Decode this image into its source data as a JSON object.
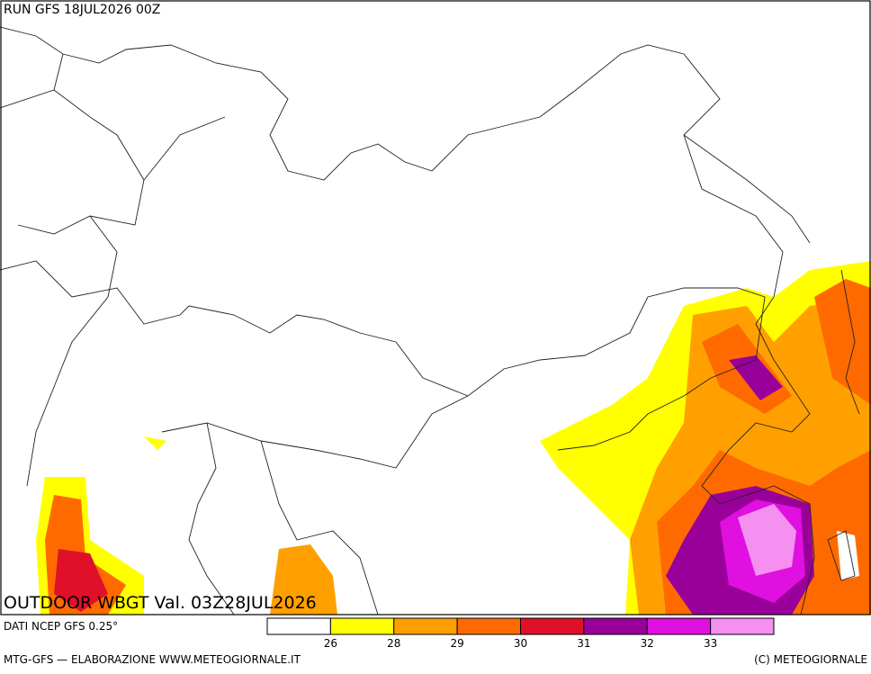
{
  "header": {
    "run": "RUN GFS 18JUL2026 00Z"
  },
  "map": {
    "title": "OUTDOOR WBGT Val. 03Z28JUL2026"
  },
  "legend": {
    "source": "DATI NCEP GFS 0.25°",
    "ticks": [
      26,
      28,
      29,
      30,
      31,
      32,
      33
    ],
    "colors": [
      "#ffffff",
      "#ffff00",
      "#ffa000",
      "#ff6a00",
      "#e0102a",
      "#990099",
      "#e010e0",
      "#f590f0"
    ]
  },
  "footer": {
    "left": "MTG-GFS — ELABORAZIONE WWW.METEOGIORNALE.IT",
    "right": "(C) METEOGIORNALE"
  }
}
